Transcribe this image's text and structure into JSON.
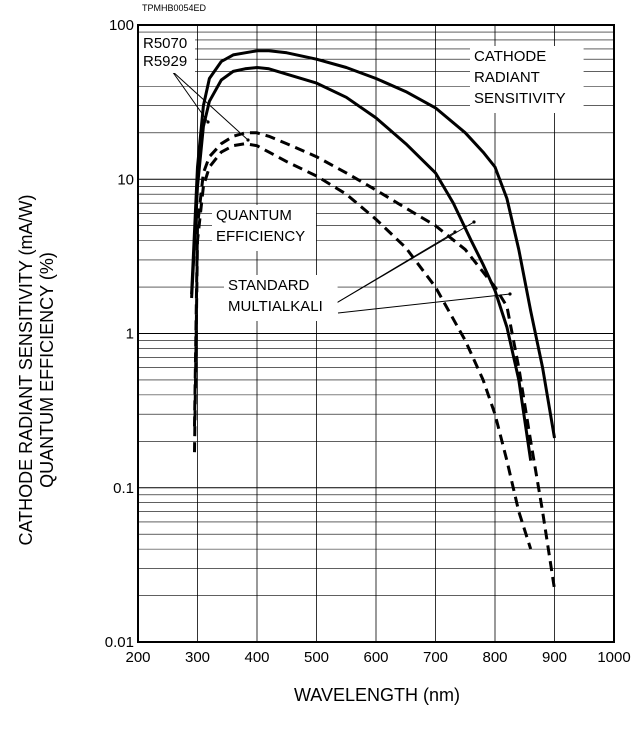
{
  "chart_data": {
    "type": "line",
    "code": "TPMHB0054ED",
    "xlabel": "WAVELENGTH (nm)",
    "ylabel": [
      "CATHODE RADIANT SENSITIVITY (mA/W)",
      "QUANTUM EFFICIENCY (%)"
    ],
    "xlim": [
      200,
      1000
    ],
    "ylim": [
      0.01,
      100
    ],
    "yscale": "log",
    "grid": true,
    "x_ticks": [
      "200",
      "300",
      "400",
      "500",
      "600",
      "700",
      "800",
      "900",
      "1000"
    ],
    "y_ticks": [
      "0.01",
      "0.1",
      "1",
      "10",
      "100"
    ],
    "annotations": {
      "models": [
        "R5070",
        "R5929"
      ],
      "cathode": [
        "CATHODE",
        "RADIANT",
        "SENSITIVITY"
      ],
      "quantum": [
        "QUANTUM",
        "EFFICIENCY"
      ],
      "standard": [
        "STANDARD",
        "MULTIALKALI"
      ]
    },
    "series": [
      {
        "group": "cathode radiant sensitivity",
        "model": "R5070",
        "style": "solid",
        "points": [
          [
            290,
            1.8
          ],
          [
            300,
            12
          ],
          [
            310,
            30
          ],
          [
            320,
            45
          ],
          [
            340,
            58
          ],
          [
            360,
            64
          ],
          [
            380,
            66
          ],
          [
            400,
            68
          ],
          [
            420,
            68
          ],
          [
            450,
            66
          ],
          [
            500,
            60
          ],
          [
            550,
            53
          ],
          [
            600,
            45
          ],
          [
            650,
            37
          ],
          [
            700,
            29
          ],
          [
            750,
            20
          ],
          [
            780,
            15
          ],
          [
            800,
            12
          ],
          [
            820,
            7.5
          ],
          [
            840,
            3.5
          ],
          [
            860,
            1.4
          ],
          [
            880,
            0.6
          ],
          [
            900,
            0.21
          ]
        ]
      },
      {
        "group": "cathode radiant sensitivity",
        "model": "R5929",
        "style": "solid",
        "points": [
          [
            290,
            1.7
          ],
          [
            300,
            9
          ],
          [
            310,
            22
          ],
          [
            320,
            32
          ],
          [
            340,
            44
          ],
          [
            360,
            50
          ],
          [
            380,
            52
          ],
          [
            400,
            53
          ],
          [
            420,
            52
          ],
          [
            450,
            48
          ],
          [
            500,
            42
          ],
          [
            550,
            34
          ],
          [
            600,
            25
          ],
          [
            650,
            17
          ],
          [
            700,
            11
          ],
          [
            730,
            7
          ],
          [
            760,
            4
          ],
          [
            780,
            2.8
          ],
          [
            800,
            1.9
          ],
          [
            820,
            1.1
          ],
          [
            840,
            0.5
          ],
          [
            860,
            0.15
          ]
        ]
      },
      {
        "group": "quantum efficiency",
        "model": "R5070",
        "style": "dashed",
        "points": [
          [
            295,
            0.25
          ],
          [
            300,
            5
          ],
          [
            310,
            11
          ],
          [
            320,
            14
          ],
          [
            340,
            17
          ],
          [
            360,
            19
          ],
          [
            380,
            20
          ],
          [
            400,
            20
          ],
          [
            420,
            19
          ],
          [
            450,
            17
          ],
          [
            500,
            14
          ],
          [
            550,
            11
          ],
          [
            600,
            8.5
          ],
          [
            650,
            6.5
          ],
          [
            700,
            5
          ],
          [
            750,
            3.5
          ],
          [
            780,
            2.5
          ],
          [
            800,
            2
          ],
          [
            820,
            1.5
          ],
          [
            840,
            0.6
          ],
          [
            860,
            0.2
          ],
          [
            880,
            0.07
          ],
          [
            900,
            0.022
          ]
        ]
      },
      {
        "group": "quantum efficiency",
        "model": "R5929",
        "style": "dashed",
        "points": [
          [
            295,
            0.17
          ],
          [
            300,
            4
          ],
          [
            310,
            9
          ],
          [
            320,
            12
          ],
          [
            340,
            15
          ],
          [
            360,
            16.5
          ],
          [
            380,
            17
          ],
          [
            400,
            16.5
          ],
          [
            420,
            15
          ],
          [
            450,
            13
          ],
          [
            500,
            10.5
          ],
          [
            550,
            8
          ],
          [
            600,
            5.5
          ],
          [
            650,
            3.6
          ],
          [
            700,
            2
          ],
          [
            750,
            0.9
          ],
          [
            780,
            0.5
          ],
          [
            800,
            0.3
          ],
          [
            820,
            0.15
          ],
          [
            840,
            0.07
          ],
          [
            860,
            0.04
          ]
        ]
      }
    ]
  }
}
